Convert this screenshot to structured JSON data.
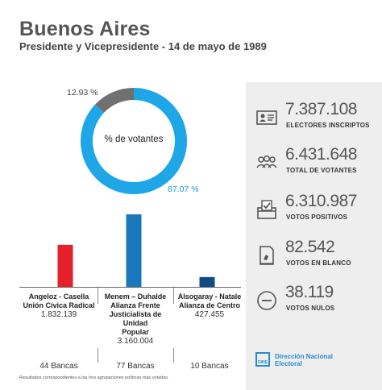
{
  "header": {
    "title": "Buenos Aires",
    "subtitle": "Presidente y Vicepresidente - 14 de mayo de 1989"
  },
  "donut": {
    "center_label": "% de votantes",
    "slices": [
      {
        "label": "87.07 %",
        "value": 87.07,
        "color": "#1ea6e6"
      },
      {
        "label": "12.93 %",
        "value": 12.93,
        "color": "#707070"
      }
    ]
  },
  "chart_data": [
    {
      "type": "pie",
      "title": "% de votantes",
      "values": [
        87.07,
        12.93
      ],
      "labels": [
        "87.07 %",
        "12.93 %"
      ],
      "colors": [
        "#1ea6e6",
        "#707070"
      ]
    },
    {
      "type": "bar",
      "categories": [
        "Angeloz - Casella Unión Cívica Radical",
        "Menem – Duhalde Alianza Frente Justicialista de Unidad Popular",
        "Alsogaray - Natale Alianza de Centro"
      ],
      "values": [
        1832139,
        3160004,
        427455
      ],
      "colors": [
        "#e4202a",
        "#1b77bb",
        "#0f4a85"
      ],
      "seats": [
        "44 Bancas",
        "77 Bancas",
        "10 Bancas"
      ]
    }
  ],
  "candidates": [
    {
      "name1": "Angeloz - Casella",
      "name2": "Unión Cívica Radical",
      "name3": "",
      "name4": "",
      "votes": "1.832.139",
      "bancas": "44 Bancas"
    },
    {
      "name1": "Menem – Duhalde",
      "name2": "Alianza Frente",
      "name3": "Justicialista de Unidad",
      "name4": "Popular",
      "votes": "3.160.004",
      "bancas": "77 Bancas"
    },
    {
      "name1": "Alsogaray - Natale",
      "name2": "Alianza de Centro",
      "name3": "",
      "name4": "",
      "votes": "427.455",
      "bancas": "10 Bancas"
    }
  ],
  "stats": [
    {
      "value": "7.387.108",
      "label": "ELECTORES INSCRIPTOS",
      "icon": "id-card-icon"
    },
    {
      "value": "6.431.648",
      "label": "TOTAL DE VOTANTES",
      "icon": "people-icon"
    },
    {
      "value": "6.310.987",
      "label": "VOTOS POSITIVOS",
      "icon": "ballot-box-icon"
    },
    {
      "value": "82.542",
      "label": "VOTOS EN BLANCO",
      "icon": "blank-ballot-icon"
    },
    {
      "value": "38.119",
      "label": "VOTOS NULOS",
      "icon": "null-vote-icon"
    }
  ],
  "footnote": "Resultados correspondientes a las tres agrupaciones políticas más votadas.",
  "logo": {
    "box": "DINE",
    "line1": "Dirección Nacional",
    "line2": "Electoral",
    "color": "#2a8bcf"
  }
}
